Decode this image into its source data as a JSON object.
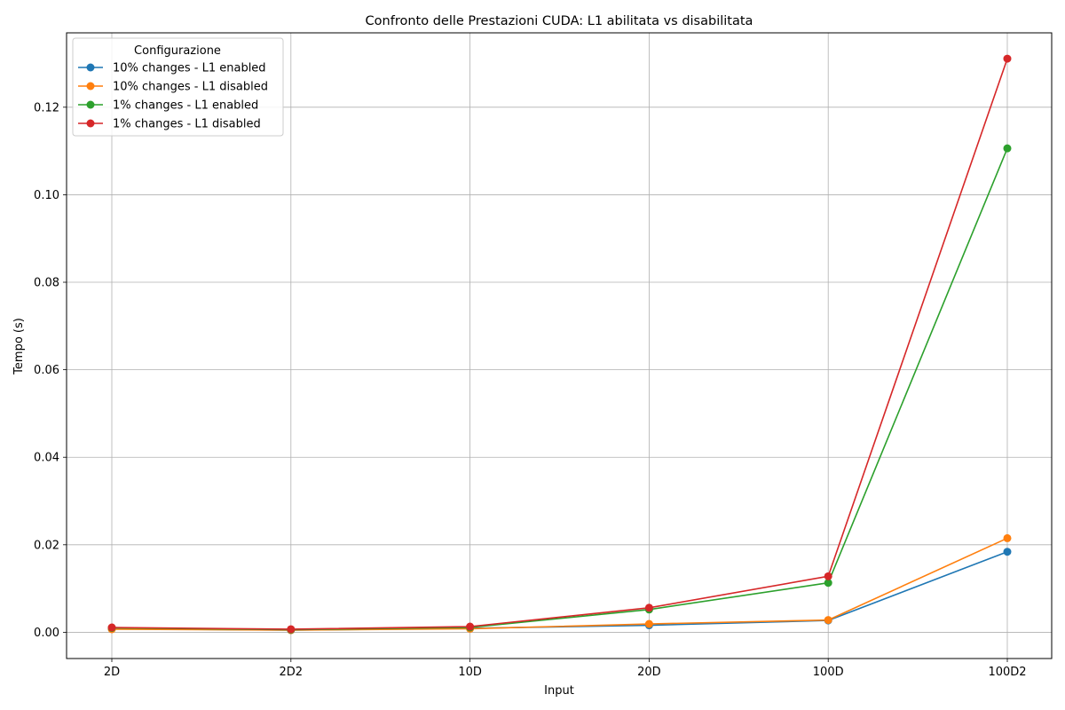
{
  "chart_data": {
    "type": "line",
    "title": "Confronto delle Prestazioni CUDA: L1 abilitata vs disabilitata",
    "xlabel": "Input",
    "ylabel": "Tempo (s)",
    "categories": [
      "2D",
      "2D2",
      "10D",
      "20D",
      "100D",
      "100D2"
    ],
    "ylim": [
      -0.006,
      0.137
    ],
    "yticks": [
      0.0,
      0.02,
      0.04,
      0.06,
      0.08,
      0.1,
      0.12
    ],
    "ytick_labels": [
      "0.00",
      "0.02",
      "0.04",
      "0.06",
      "0.08",
      "0.10",
      "0.12"
    ],
    "grid": true,
    "legend": {
      "title": "Configurazione",
      "placement": "top-left"
    },
    "series": [
      {
        "name": "10% changes - L1 enabled",
        "color": "#1f77b4",
        "values": [
          0.0008,
          0.0005,
          0.0009,
          0.0016,
          0.0027,
          0.0184
        ]
      },
      {
        "name": "10% changes - L1 disabled",
        "color": "#ff7f0e",
        "values": [
          0.0007,
          0.0005,
          0.0008,
          0.0019,
          0.0028,
          0.0215
        ]
      },
      {
        "name": "1% changes - L1 enabled",
        "color": "#2ca02c",
        "values": [
          0.001,
          0.0006,
          0.0011,
          0.0052,
          0.0113,
          0.1106
        ]
      },
      {
        "name": "1% changes - L1 disabled",
        "color": "#d62728",
        "values": [
          0.0011,
          0.0007,
          0.0013,
          0.0056,
          0.0128,
          0.1311
        ]
      }
    ]
  }
}
